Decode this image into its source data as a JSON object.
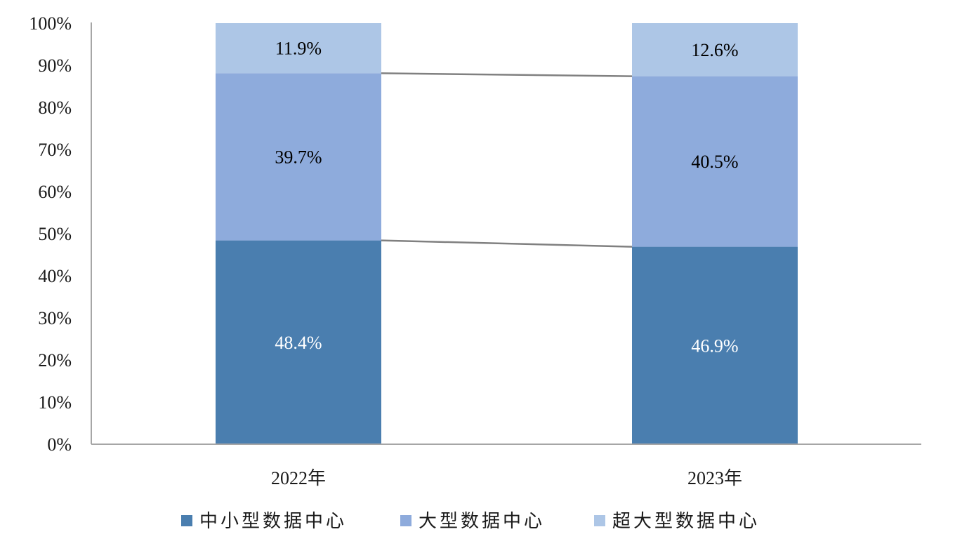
{
  "chart_data": {
    "type": "bar",
    "stacked": true,
    "categories": [
      "2022年",
      "2023年"
    ],
    "series": [
      {
        "name": "中小型数据中心",
        "values": [
          48.4,
          46.9
        ],
        "labels": [
          "48.4%",
          "46.9%"
        ],
        "color": "#4a7eaf",
        "label_color": "#ffffff"
      },
      {
        "name": "大型数据中心",
        "values": [
          39.7,
          40.5
        ],
        "labels": [
          "39.7%",
          "40.5%"
        ],
        "color": "#8eabdc",
        "label_color": "#000000"
      },
      {
        "name": "超大型数据中心",
        "values": [
          11.9,
          12.6
        ],
        "labels": [
          "11.9%",
          "12.6%"
        ],
        "color": "#adc6e6",
        "label_color": "#000000"
      }
    ],
    "yticks": [
      "0%",
      "10%",
      "20%",
      "30%",
      "40%",
      "50%",
      "60%",
      "70%",
      "80%",
      "90%",
      "100%"
    ],
    "ylim": [
      0,
      100
    ],
    "series_lines": true,
    "series_line_color": "#808080",
    "axis_color": "#a6a6a6",
    "grid": false,
    "legend_position": "bottom"
  }
}
